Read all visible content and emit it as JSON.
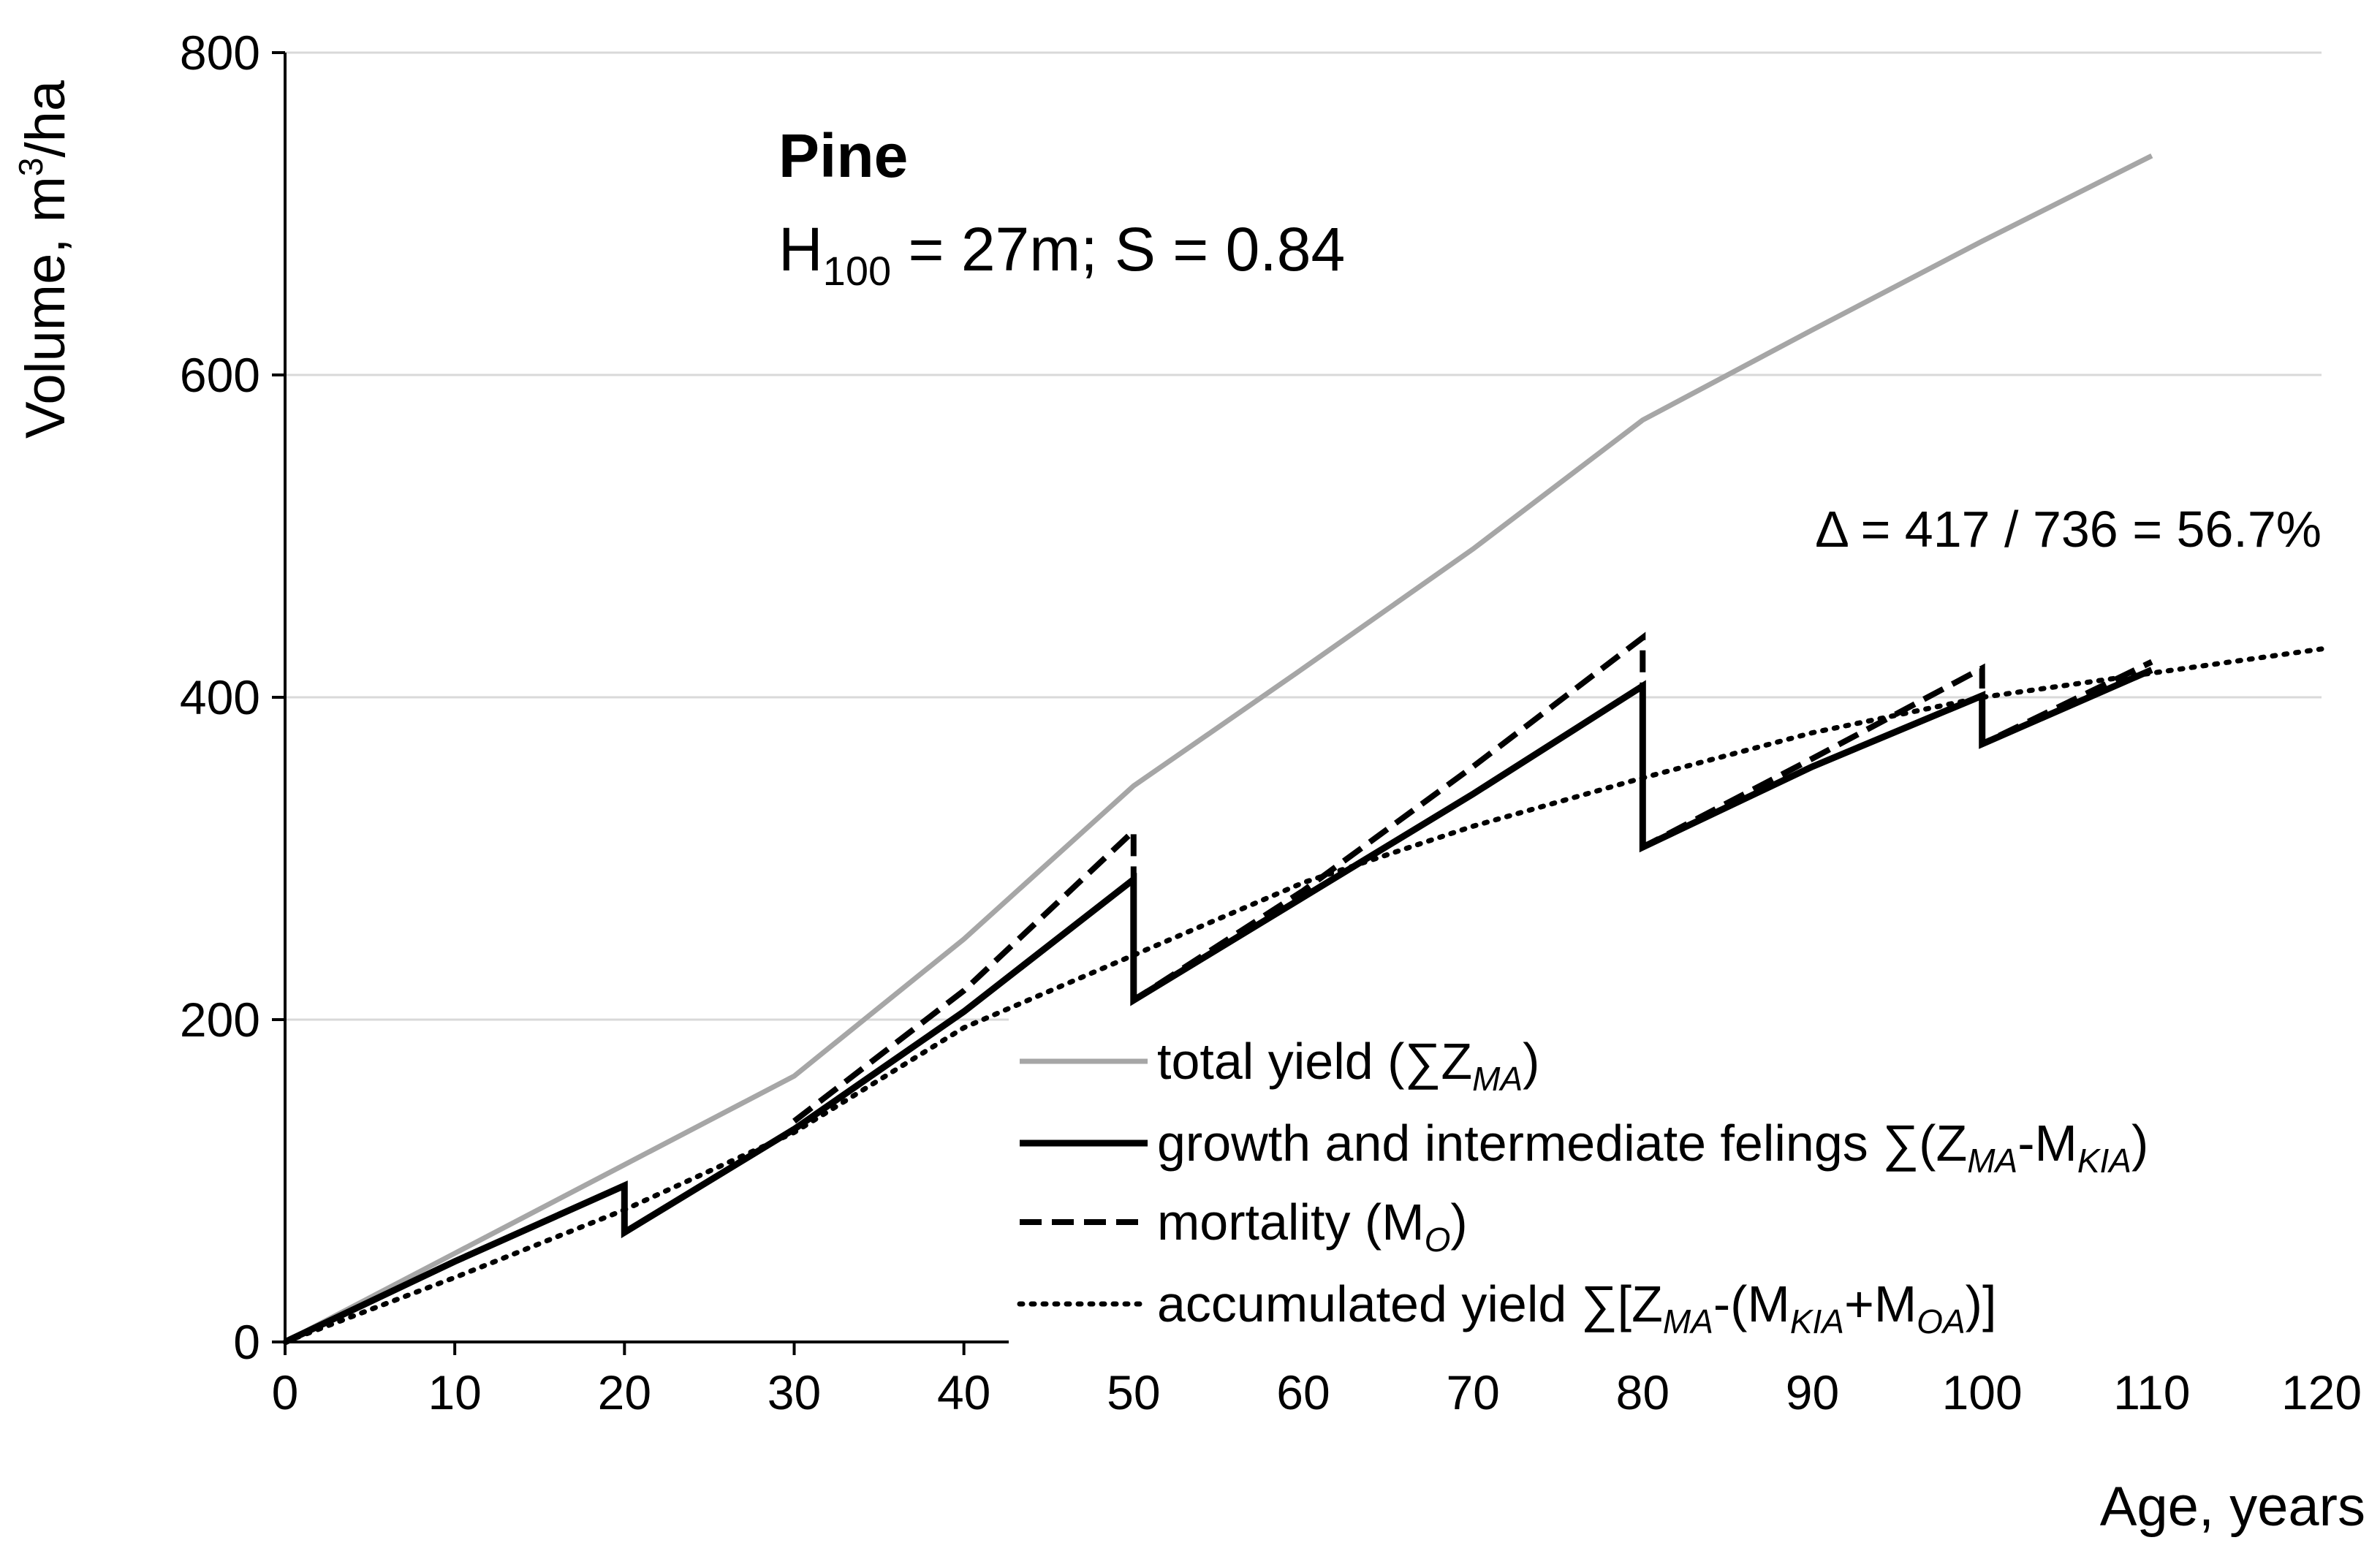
{
  "chart_data": {
    "type": "line",
    "title": "",
    "xlabel": "Age, years",
    "ylabel_parts": {
      "base": "Volume, m",
      "sup": "3",
      "tail": "/ha"
    },
    "xlim": [
      0,
      120
    ],
    "ylim": [
      0,
      800
    ],
    "x_ticks": [
      0,
      10,
      20,
      30,
      40,
      50,
      60,
      70,
      80,
      90,
      100,
      110,
      120
    ],
    "y_ticks": [
      0,
      200,
      400,
      600,
      800
    ],
    "grid": "horizontal",
    "annotations": {
      "species": "Pine",
      "params": {
        "h": "H",
        "h_sub": "100",
        "rest": " = 27m; S = 0.84"
      },
      "delta": "Δ = 417 / 736 = 56.7%"
    },
    "series": [
      {
        "key": "total",
        "name": "total yield (∑Z_MA)",
        "color": "#a6a6a6",
        "style": "solid",
        "points": [
          [
            0,
            0
          ],
          [
            10,
            55
          ],
          [
            20,
            110
          ],
          [
            30,
            165
          ],
          [
            40,
            250
          ],
          [
            50,
            345
          ],
          [
            60,
            418
          ],
          [
            70,
            492
          ],
          [
            80,
            572
          ],
          [
            90,
            628
          ],
          [
            100,
            683
          ],
          [
            110,
            736
          ]
        ]
      },
      {
        "key": "growth",
        "name": "growth and intermediate felings ∑(Z_MA-M_KIA)",
        "color": "#000000",
        "style": "solid",
        "points": [
          [
            0,
            0
          ],
          [
            10,
            50
          ],
          [
            20,
            97
          ],
          [
            20,
            68
          ],
          [
            30,
            132
          ],
          [
            40,
            205
          ],
          [
            50,
            287
          ],
          [
            50,
            212
          ],
          [
            60,
            276
          ],
          [
            70,
            340
          ],
          [
            80,
            407
          ],
          [
            80,
            307
          ],
          [
            90,
            357
          ],
          [
            100,
            401
          ],
          [
            100,
            371
          ],
          [
            110,
            417
          ]
        ]
      },
      {
        "key": "mortality",
        "name": "mortality (M_O)",
        "color": "#000000",
        "style": "dashed",
        "points": [
          [
            30,
            137
          ],
          [
            40,
            218
          ],
          [
            50,
            317
          ],
          [
            50,
            212
          ],
          [
            60,
            280
          ],
          [
            70,
            357
          ],
          [
            80,
            437
          ],
          [
            80,
            307
          ],
          [
            90,
            362
          ],
          [
            100,
            418
          ],
          [
            100,
            371
          ],
          [
            110,
            422
          ]
        ]
      },
      {
        "key": "accumulated",
        "name": "accumulated yield ∑[Z_MA-(M_KIA+M_OA)]",
        "color": "#000000",
        "style": "dotted",
        "points": [
          [
            0,
            0
          ],
          [
            10,
            40
          ],
          [
            20,
            82
          ],
          [
            30,
            130
          ],
          [
            40,
            195
          ],
          [
            50,
            240
          ],
          [
            60,
            285
          ],
          [
            70,
            320
          ],
          [
            80,
            350
          ],
          [
            90,
            378
          ],
          [
            100,
            400
          ],
          [
            110,
            415
          ],
          [
            120,
            430
          ]
        ]
      }
    ]
  },
  "legend": {
    "total": {
      "pre": "total yield (∑Z",
      "s1": "MA",
      "post": ")"
    },
    "growth": {
      "pre": "growth and intermediate felings ∑(Z",
      "s1": "MA",
      "mid": "-M",
      "s2": "KIA",
      "post": ")"
    },
    "mortality": {
      "pre": "mortality (M",
      "s1": "O",
      "post": ")"
    },
    "accumulated": {
      "pre": "accumulated yield ∑[Z",
      "s1": "MA",
      "mid": "-(M",
      "s2": "KIA",
      "mid2": "+M",
      "s3": "OA",
      "post": ")]"
    }
  }
}
